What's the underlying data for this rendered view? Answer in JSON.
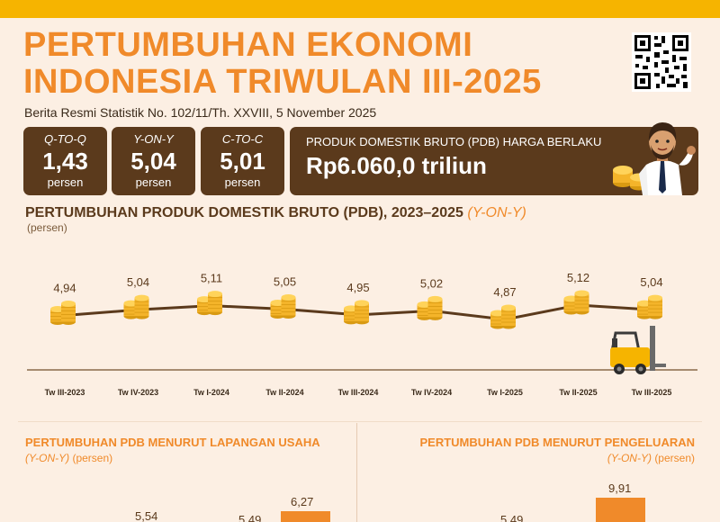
{
  "header": {
    "title_line1": "PERTUMBUHAN EKONOMI",
    "title_line2": "INDONESIA TRIWULAN III-2025",
    "subtitle": "Berita Resmi Statistik No. 102/11/Th. XXVIII, 5 November 2025"
  },
  "stats": [
    {
      "label": "Q-TO-Q",
      "value": "1,43",
      "unit": "persen"
    },
    {
      "label": "Y-ON-Y",
      "value": "5,04",
      "unit": "persen"
    },
    {
      "label": "C-TO-C",
      "value": "5,01",
      "unit": "persen"
    }
  ],
  "pdb": {
    "label": "PRODUK DOMESTIK BRUTO (PDB) HARGA BERLAKU",
    "value": "Rp6.060,0 triliun"
  },
  "section": {
    "title_main": "PERTUMBUHAN PRODUK DOMESTIK BRUTO (PDB), 2023–2025",
    "title_em": "(Y-ON-Y)",
    "unit": "(persen)"
  },
  "chart_data": {
    "type": "line",
    "title": "PERTUMBUHAN PRODUK DOMESTIK BRUTO (PDB), 2023–2025 (Y-ON-Y)",
    "ylabel": "(persen)",
    "categories": [
      "Tw III-2023",
      "Tw IV-2023",
      "Tw I-2024",
      "Tw II-2024",
      "Tw III-2024",
      "Tw IV-2024",
      "Tw I-2025",
      "Tw II-2025",
      "Tw III-2025"
    ],
    "values": [
      4.94,
      5.04,
      5.11,
      5.05,
      4.95,
      5.02,
      4.87,
      5.12,
      5.04
    ],
    "value_labels": [
      "4,94",
      "5,04",
      "5,11",
      "5,05",
      "4,95",
      "5,02",
      "4,87",
      "5,12",
      "5,04"
    ],
    "line_color": "#5b3a1c",
    "marker": "coin-stack"
  },
  "lapangan": {
    "title": "PERTUMBUHAN PDB MENURUT LAPANGAN USAHA",
    "unit_em": "(Y-ON-Y)",
    "unit": "(persen)",
    "bars": [
      {
        "label": "5,54",
        "value": 5.54
      },
      {
        "label": "5,49",
        "value": 5.49
      },
      {
        "label": "6,27",
        "value": 6.27
      }
    ]
  },
  "pengeluaran": {
    "title": "PERTUMBUHAN PDB MENURUT PENGELUARAN",
    "unit_em": "(Y-ON-Y)",
    "unit": "(persen)",
    "bars": [
      {
        "label": "5,49",
        "value": 5.49
      },
      {
        "label": "9,91",
        "value": 9.91
      }
    ]
  },
  "colors": {
    "accent": "#f08a2a",
    "brown": "#5b3a1c",
    "yellow": "#f6b400",
    "background": "#fcefe3"
  }
}
